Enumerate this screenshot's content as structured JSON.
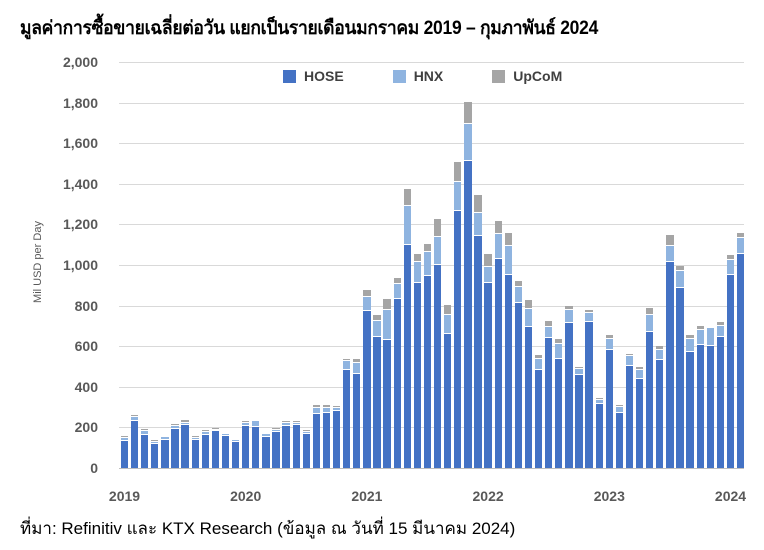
{
  "header": {
    "title": "มูลค่าการซื้อขายเฉลี่ยต่อวัน แยกเป็นรายเดือนมกราคม 2019 – กุมภาพันธ์ 2024"
  },
  "footer": {
    "source": "ที่มา: Refinitiv และ KTX Research (ข้อมูล ณ วันที่ 15 มีนาคม 2024)"
  },
  "colors": {
    "HOSE": "#4472C4",
    "HNX": "#8FB4E0",
    "UpCoM": "#A5A5A5",
    "grid": "#D9D9D9",
    "tick_text": "#595959"
  },
  "chart_data": {
    "type": "bar",
    "stacked": true,
    "title": "มูลค่าการซื้อขายเฉลี่ยต่อวัน แยกเป็นรายเดือนมกราคม 2019 – กุมภาพันธ์ 2024",
    "xlabel": "",
    "ylabel": "Mil USD per Day",
    "ylim": [
      0,
      2000
    ],
    "yticks": [
      "0",
      "200",
      "400",
      "600",
      "800",
      "1,000",
      "1,200",
      "1,400",
      "1,600",
      "1,800",
      "2,000"
    ],
    "ytick_values": [
      0,
      200,
      400,
      600,
      800,
      1000,
      1200,
      1400,
      1600,
      1800,
      2000
    ],
    "xtick_labels": [
      {
        "label": "2019",
        "index": 0
      },
      {
        "label": "2020",
        "index": 12
      },
      {
        "label": "2021",
        "index": 24
      },
      {
        "label": "2022",
        "index": 36
      },
      {
        "label": "2023",
        "index": 48
      },
      {
        "label": "2024",
        "index": 60
      }
    ],
    "grid": true,
    "legend_position": "top",
    "categories": [
      "2019-01",
      "2019-02",
      "2019-03",
      "2019-04",
      "2019-05",
      "2019-06",
      "2019-07",
      "2019-08",
      "2019-09",
      "2019-10",
      "2019-11",
      "2019-12",
      "2020-01",
      "2020-02",
      "2020-03",
      "2020-04",
      "2020-05",
      "2020-06",
      "2020-07",
      "2020-08",
      "2020-09",
      "2020-10",
      "2020-11",
      "2020-12",
      "2021-01",
      "2021-02",
      "2021-03",
      "2021-04",
      "2021-05",
      "2021-06",
      "2021-07",
      "2021-08",
      "2021-09",
      "2021-10",
      "2021-11",
      "2021-12",
      "2022-01",
      "2022-02",
      "2022-03",
      "2022-04",
      "2022-05",
      "2022-06",
      "2022-07",
      "2022-08",
      "2022-09",
      "2022-10",
      "2022-11",
      "2022-12",
      "2023-01",
      "2023-02",
      "2023-03",
      "2023-04",
      "2023-05",
      "2023-06",
      "2023-07",
      "2023-08",
      "2023-09",
      "2023-10",
      "2023-11",
      "2023-12",
      "2024-01",
      "2024-02"
    ],
    "series": [
      {
        "name": "HOSE",
        "color": "#4472C4",
        "values": [
          133,
          231,
          162,
          119,
          138,
          192,
          211,
          137,
          162,
          180,
          158,
          130,
          206,
          201,
          154,
          177,
          206,
          211,
          167,
          266,
          270,
          280,
          484,
          462,
          772,
          646,
          629,
          831,
          1098,
          911,
          944,
          1002,
          662,
          1266,
          1514,
          1141,
          913,
          1031,
          952,
          814,
          693,
          484,
          642,
          538,
          716,
          460,
          718,
          314,
          580,
          269,
          504,
          437,
          671,
          532,
          1013,
          888,
          573,
          607,
          602,
          647,
          952,
          1056
        ]
      },
      {
        "name": "HNX",
        "color": "#8FB4E0",
        "values": [
          13,
          19,
          20,
          11,
          15,
          13,
          12,
          13,
          14,
          9,
          9,
          10,
          18,
          30,
          13,
          12,
          17,
          13,
          10,
          31,
          26,
          16,
          41,
          54,
          70,
          79,
          150,
          74,
          194,
          102,
          122,
          138,
          90,
          141,
          179,
          115,
          76,
          123,
          142,
          76,
          89,
          51,
          53,
          73,
          61,
          26,
          47,
          21,
          54,
          30,
          46,
          44,
          81,
          49,
          82,
          81,
          62,
          73,
          86,
          54,
          73,
          78
        ]
      },
      {
        "name": "UpCoM",
        "color": "#A5A5A5",
        "values": [
          10,
          13,
          8,
          7,
          3,
          10,
          15,
          9,
          9,
          10,
          4,
          5,
          9,
          7,
          7,
          6,
          11,
          10,
          8,
          12,
          13,
          8,
          13,
          19,
          36,
          31,
          55,
          29,
          82,
          41,
          39,
          87,
          49,
          100,
          111,
          89,
          65,
          64,
          64,
          30,
          46,
          20,
          27,
          23,
          19,
          12,
          13,
          10,
          20,
          13,
          12,
          17,
          36,
          21,
          51,
          26,
          22,
          21,
          8,
          17,
          24,
          22
        ]
      }
    ],
    "totals": [
      156,
      263,
      190,
      137,
      156,
      215,
      238,
      159,
      185,
      199,
      171,
      145,
      233,
      238,
      174,
      195,
      234,
      234,
      185,
      309,
      309,
      304,
      538,
      535,
      878,
      756,
      834,
      934,
      1374,
      1054,
      1105,
      1227,
      801,
      1507,
      1804,
      1345,
      1054,
      1218,
      1158,
      920,
      828,
      555,
      722,
      634,
      796,
      498,
      778,
      345,
      654,
      312,
      562,
      498,
      788,
      602,
      1146,
      995,
      657,
      701,
      696,
      718,
      1049,
      1156
    ]
  }
}
